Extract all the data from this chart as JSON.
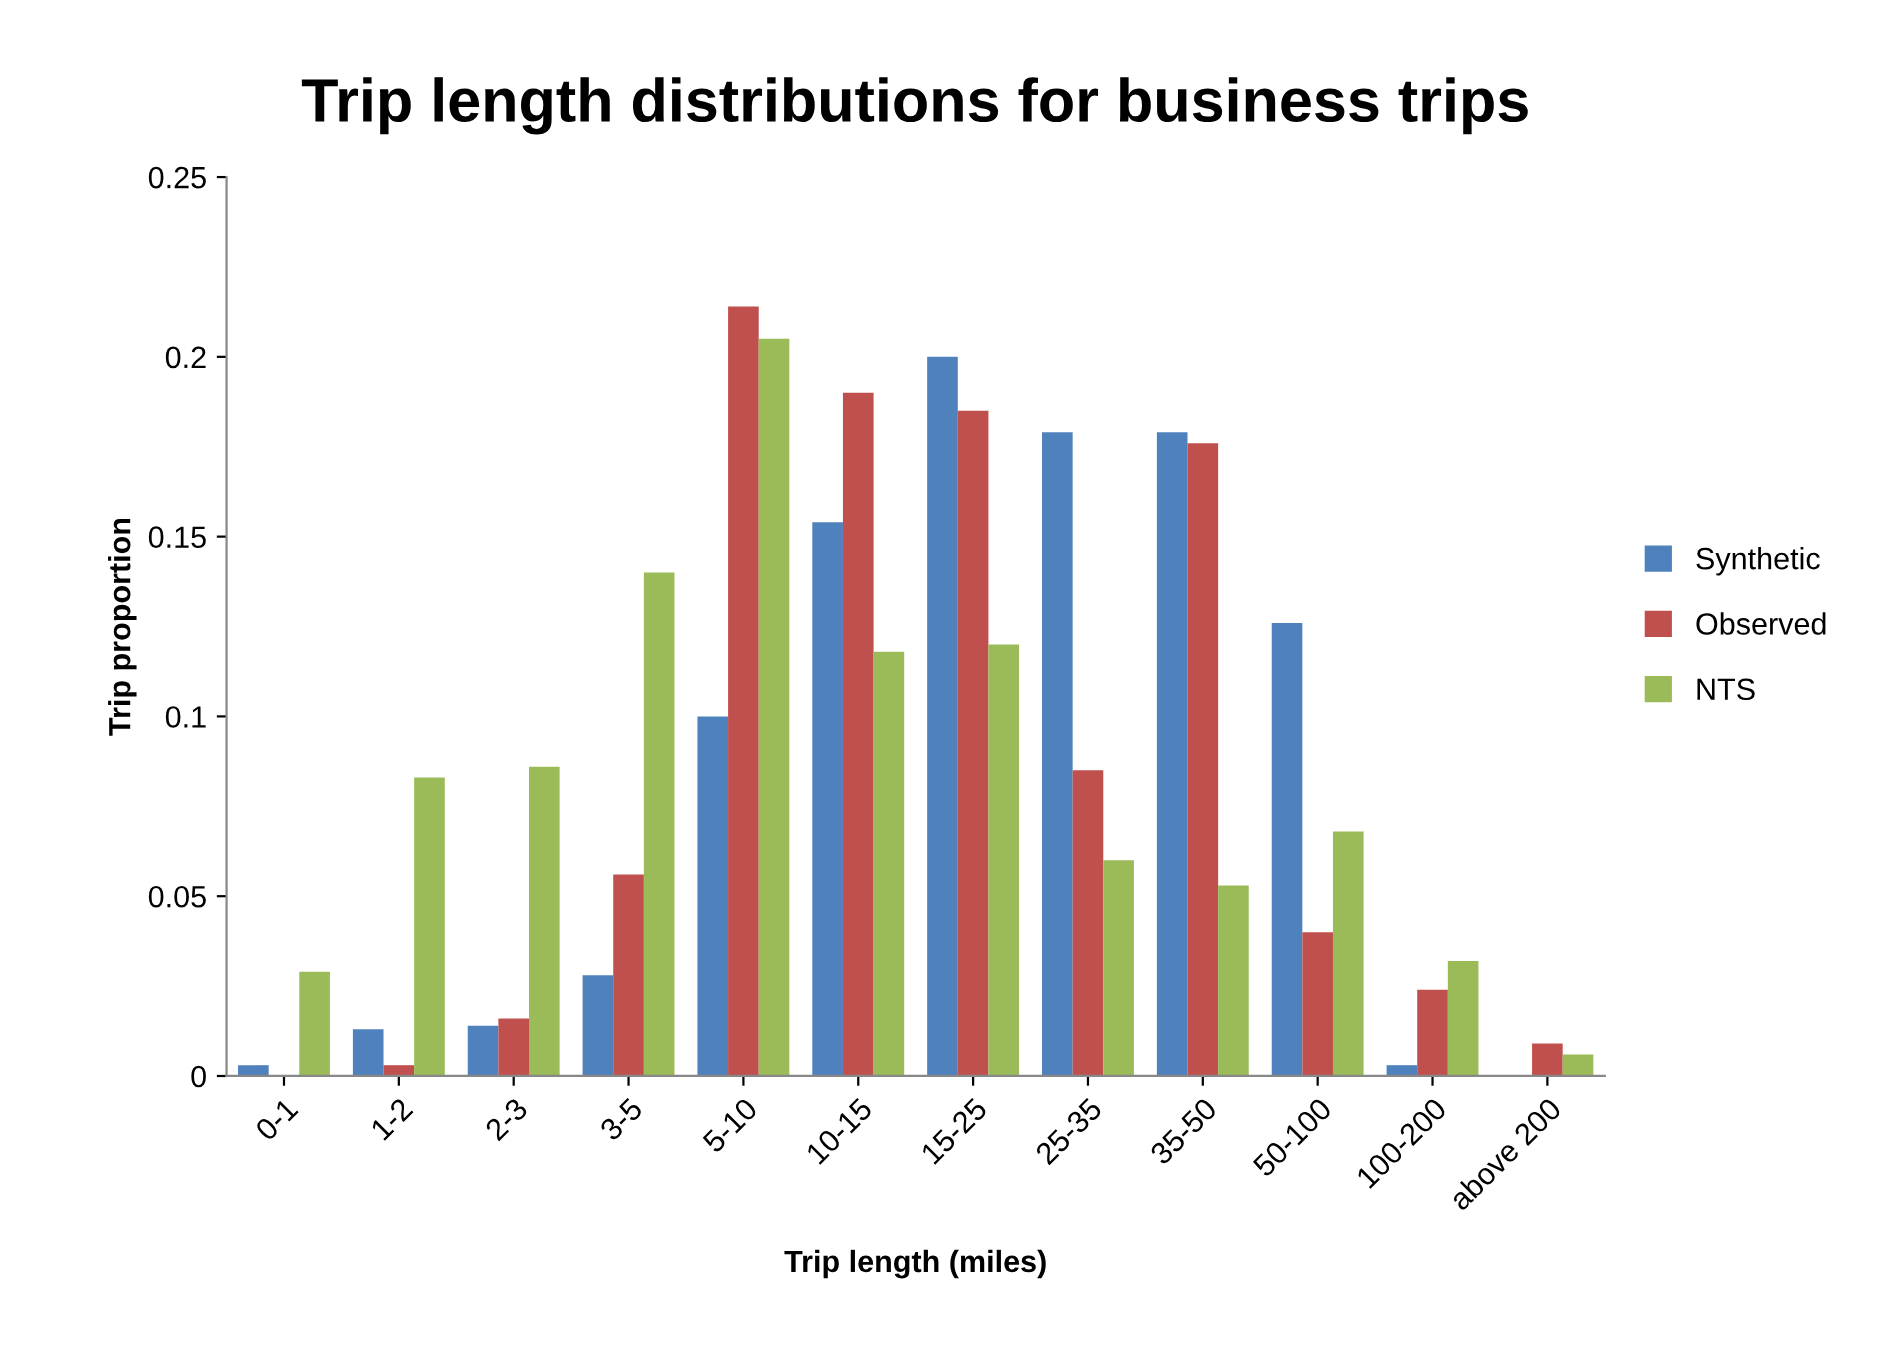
{
  "chart_data": {
    "type": "bar",
    "title": "Trip length distributions for business trips",
    "xlabel": "Trip length (miles)",
    "ylabel": "Trip proportion",
    "categories": [
      "0-1",
      "1-2",
      "2-3",
      "3-5",
      "5-10",
      "10-15",
      "15-25",
      "25-35",
      "35-50",
      "50-100",
      "100-200",
      "above 200"
    ],
    "series": [
      {
        "name": "Synthetic",
        "color": "#4f81bd",
        "values": [
          0.003,
          0.013,
          0.014,
          0.028,
          0.1,
          0.154,
          0.2,
          0.179,
          0.179,
          0.126,
          0.003,
          0
        ]
      },
      {
        "name": "Observed",
        "color": "#c0504d",
        "values": [
          0,
          0.003,
          0.016,
          0.056,
          0.214,
          0.19,
          0.185,
          0.085,
          0.176,
          0.04,
          0.024,
          0.009
        ]
      },
      {
        "name": "NTS",
        "color": "#9bbb59",
        "values": [
          0.029,
          0.083,
          0.086,
          0.14,
          0.205,
          0.118,
          0.12,
          0.06,
          0.053,
          0.068,
          0.032,
          0.006
        ]
      }
    ],
    "ylim": [
      0,
      0.25
    ],
    "yticks": [
      {
        "value": 0,
        "label": "0"
      },
      0.05,
      0.1,
      0.15,
      0.2,
      0.25
    ],
    "grid": false,
    "legend": "right"
  }
}
